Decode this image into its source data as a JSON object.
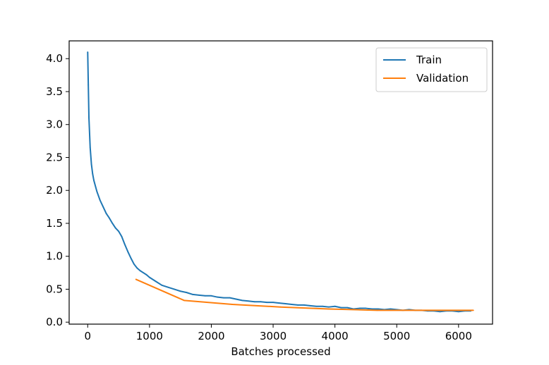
{
  "chart_data": {
    "type": "line",
    "title": "",
    "xlabel": "Batches processed",
    "ylabel": "",
    "xlim": [
      -300,
      6550
    ],
    "ylim": [
      -0.03,
      4.27
    ],
    "xticks": [
      0,
      1000,
      2000,
      3000,
      4000,
      5000,
      6000
    ],
    "yticks": [
      0.0,
      0.5,
      1.0,
      1.5,
      2.0,
      2.5,
      3.0,
      3.5,
      4.0
    ],
    "grid": false,
    "legend_position": "top-right",
    "series": [
      {
        "name": "Train",
        "color": "#1f77b4",
        "x": [
          0,
          10,
          20,
          40,
          60,
          80,
          100,
          150,
          200,
          250,
          300,
          350,
          400,
          450,
          500,
          550,
          600,
          650,
          700,
          750,
          800,
          850,
          900,
          950,
          1000,
          1100,
          1200,
          1300,
          1400,
          1500,
          1600,
          1700,
          1800,
          1900,
          2000,
          2100,
          2200,
          2300,
          2400,
          2500,
          2600,
          2700,
          2800,
          2900,
          3000,
          3100,
          3200,
          3300,
          3400,
          3500,
          3600,
          3700,
          3800,
          3900,
          4000,
          4100,
          4200,
          4300,
          4400,
          4500,
          4600,
          4700,
          4800,
          4900,
          5000,
          5100,
          5200,
          5300,
          5400,
          5500,
          5600,
          5700,
          5800,
          5900,
          6000,
          6100,
          6200
        ],
        "y": [
          4.1,
          3.6,
          3.1,
          2.65,
          2.4,
          2.25,
          2.15,
          1.98,
          1.85,
          1.75,
          1.65,
          1.58,
          1.5,
          1.43,
          1.38,
          1.3,
          1.18,
          1.07,
          0.97,
          0.88,
          0.82,
          0.78,
          0.75,
          0.72,
          0.68,
          0.62,
          0.56,
          0.53,
          0.5,
          0.47,
          0.45,
          0.42,
          0.41,
          0.4,
          0.4,
          0.38,
          0.37,
          0.37,
          0.35,
          0.33,
          0.32,
          0.31,
          0.31,
          0.3,
          0.3,
          0.29,
          0.28,
          0.27,
          0.26,
          0.26,
          0.25,
          0.24,
          0.24,
          0.23,
          0.24,
          0.22,
          0.22,
          0.2,
          0.21,
          0.21,
          0.2,
          0.2,
          0.19,
          0.2,
          0.19,
          0.18,
          0.19,
          0.18,
          0.18,
          0.17,
          0.17,
          0.16,
          0.17,
          0.17,
          0.16,
          0.17,
          0.17
        ]
      },
      {
        "name": "Validation",
        "color": "#ff7f0e",
        "x": [
          780,
          1560,
          2340,
          3120,
          3900,
          4680,
          5460,
          6240
        ],
        "y": [
          0.65,
          0.33,
          0.27,
          0.23,
          0.2,
          0.18,
          0.18,
          0.18
        ]
      }
    ]
  }
}
